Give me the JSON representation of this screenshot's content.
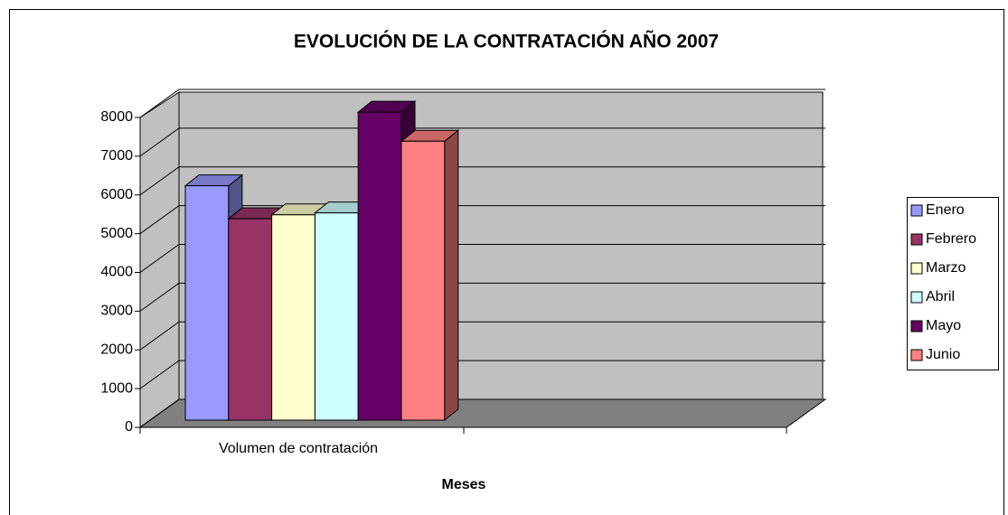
{
  "chart_data": {
    "type": "bar3d",
    "title": "EVOLUCIÓN DE LA CONTRATACIÓN  AÑO 2007",
    "xlabel": "Meses",
    "categories": [
      "Volumen de contratación"
    ],
    "series": [
      {
        "name": "Enero",
        "color": "#9999ff",
        "values": [
          6050
        ]
      },
      {
        "name": "Febrero",
        "color": "#993366",
        "values": [
          5200
        ]
      },
      {
        "name": "Marzo",
        "color": "#ffffcc",
        "values": [
          5300
        ]
      },
      {
        "name": "Abril",
        "color": "#ccffff",
        "values": [
          5350
        ]
      },
      {
        "name": "Mayo",
        "color": "#660066",
        "values": [
          7950
        ]
      },
      {
        "name": "Junio",
        "color": "#ff8080",
        "values": [
          7200
        ]
      }
    ],
    "ylim": [
      0,
      8000
    ],
    "yticks": [
      0,
      1000,
      2000,
      3000,
      4000,
      5000,
      6000,
      7000,
      8000
    ],
    "grid": true,
    "legend": "right"
  }
}
